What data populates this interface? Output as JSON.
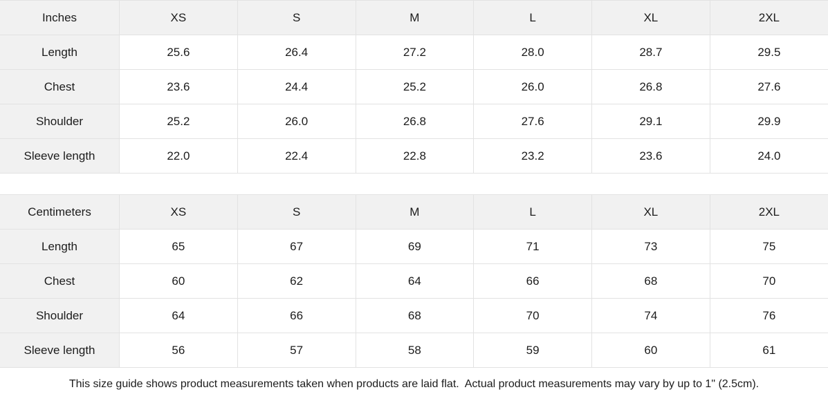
{
  "colors": {
    "header_fill": "#f1f1f1",
    "label_column_fill": "#f1f1f1",
    "cell_fill": "#ffffff",
    "border": "#e2e2e2",
    "text": "#1c1c1c"
  },
  "tables": [
    {
      "unit_label": "Inches",
      "sizes": [
        "XS",
        "S",
        "M",
        "L",
        "XL",
        "2XL"
      ],
      "rows": [
        {
          "label": "Length",
          "values": [
            "25.6",
            "26.4",
            "27.2",
            "28.0",
            "28.7",
            "29.5"
          ]
        },
        {
          "label": "Chest",
          "values": [
            "23.6",
            "24.4",
            "25.2",
            "26.0",
            "26.8",
            "27.6"
          ]
        },
        {
          "label": "Shoulder",
          "values": [
            "25.2",
            "26.0",
            "26.8",
            "27.6",
            "29.1",
            "29.9"
          ]
        },
        {
          "label": "Sleeve length",
          "values": [
            "22.0",
            "22.4",
            "22.8",
            "23.2",
            "23.6",
            "24.0"
          ]
        }
      ]
    },
    {
      "unit_label": "Centimeters",
      "sizes": [
        "XS",
        "S",
        "M",
        "L",
        "XL",
        "2XL"
      ],
      "rows": [
        {
          "label": "Length",
          "values": [
            "65",
            "67",
            "69",
            "71",
            "73",
            "75"
          ]
        },
        {
          "label": "Chest",
          "values": [
            "60",
            "62",
            "64",
            "66",
            "68",
            "70"
          ]
        },
        {
          "label": "Shoulder",
          "values": [
            "64",
            "66",
            "68",
            "70",
            "74",
            "76"
          ]
        },
        {
          "label": "Sleeve length",
          "values": [
            "56",
            "57",
            "58",
            "59",
            "60",
            "61"
          ]
        }
      ]
    }
  ],
  "footer_note": "This size guide shows product measurements taken when products are laid flat.  Actual product measurements may vary by up to 1\" (2.5cm)."
}
